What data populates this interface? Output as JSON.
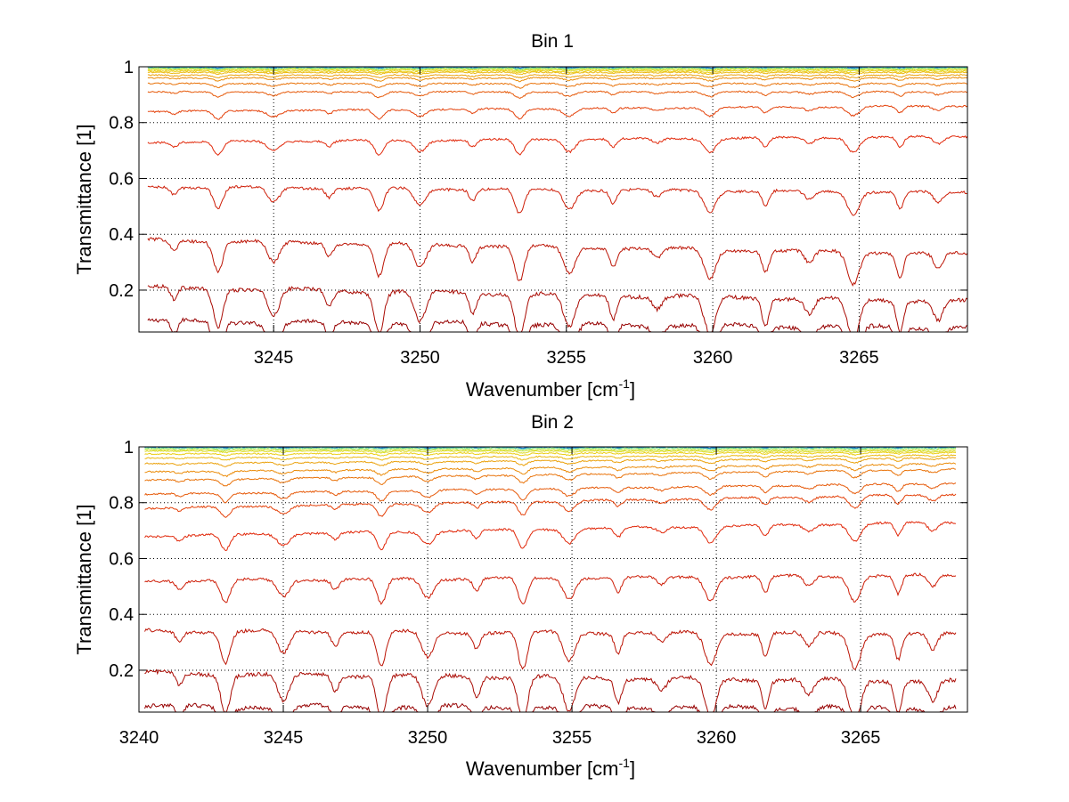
{
  "chart_data": [
    {
      "type": "line",
      "title": "Bin 1",
      "xlabel_main": "Wavenumber [cm",
      "xlabel_sup": "-1",
      "xlabel_end": "]",
      "ylabel": "Transmittance [1]",
      "xlim": [
        3240.4,
        3268.7
      ],
      "ylim": [
        0.05,
        1.0
      ],
      "xticks": [
        3245,
        3250,
        3255,
        3260,
        3265
      ],
      "yticks": [
        0.2,
        0.4,
        0.6,
        0.8,
        1
      ],
      "xtick_labels": [
        "3245",
        "3250",
        "3255",
        "3260",
        "3265"
      ],
      "ytick_labels": [
        "0.2",
        "0.4",
        "0.6",
        "0.8",
        "1"
      ],
      "grid": true,
      "x_start": 3240.7,
      "x_end": 3268.7,
      "series_color": "red-to-yellow-to-blue (jet colormap)",
      "series_base_levels": [
        0.09,
        0.21,
        0.38,
        0.57,
        0.73,
        0.84,
        0.91,
        0.94,
        0.96,
        0.97,
        0.98,
        0.985,
        0.99,
        0.993,
        0.996,
        0.998,
        1.0
      ],
      "series_end_levels": [
        0.065,
        0.16,
        0.33,
        0.55,
        0.75,
        0.86,
        0.91,
        0.94,
        0.96,
        0.97,
        0.98,
        0.985,
        0.99,
        0.993,
        0.996,
        0.998,
        1.0
      ],
      "absorption_lines": [
        3241.6,
        3243.1,
        3245.0,
        3246.9,
        3248.6,
        3250.0,
        3251.8,
        3253.4,
        3255.1,
        3256.6,
        3258.1,
        3259.9,
        3261.8,
        3263.3,
        3264.8,
        3266.4,
        3267.7
      ]
    },
    {
      "type": "line",
      "title": "Bin 2",
      "xlabel_main": "Wavenumber [cm",
      "xlabel_sup": "-1",
      "xlabel_end": "]",
      "ylabel": "Transmittance [1]",
      "xlim": [
        3240.0,
        3268.7
      ],
      "ylim": [
        0.05,
        1.0
      ],
      "xticks": [
        3240,
        3245,
        3250,
        3255,
        3260,
        3265
      ],
      "yticks": [
        0.2,
        0.4,
        0.6,
        0.8,
        1
      ],
      "xtick_labels": [
        "3240",
        "3245",
        "3250",
        "3255",
        "3260",
        "3265"
      ],
      "ytick_labels": [
        "0.2",
        "0.4",
        "0.6",
        "0.8",
        "1"
      ],
      "grid": true,
      "x_start": 3240.2,
      "x_end": 3268.3,
      "series_color": "red-to-yellow-to-blue (jet colormap)",
      "series_base_levels": [
        0.07,
        0.19,
        0.34,
        0.52,
        0.68,
        0.78,
        0.83,
        0.88,
        0.91,
        0.94,
        0.96,
        0.975,
        0.985,
        0.99,
        0.995,
        0.998,
        1.0
      ],
      "series_end_levels": [
        0.065,
        0.16,
        0.33,
        0.54,
        0.73,
        0.83,
        0.87,
        0.92,
        0.94,
        0.96,
        0.97,
        0.98,
        0.985,
        0.99,
        0.995,
        0.998,
        1.0
      ],
      "absorption_lines": [
        3241.4,
        3243.0,
        3245.0,
        3246.8,
        3248.4,
        3250.0,
        3251.7,
        3253.3,
        3254.9,
        3256.6,
        3258.1,
        3259.8,
        3261.7,
        3263.2,
        3264.8,
        3266.3,
        3267.5
      ]
    }
  ]
}
